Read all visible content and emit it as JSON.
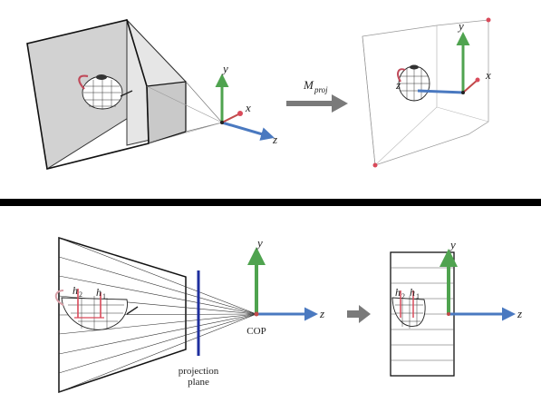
{
  "top_panel": {
    "axis_labels": {
      "y": "y",
      "x": "x",
      "z": "z"
    },
    "transform_label_base": "M",
    "transform_label_sub": "proj",
    "result_axis_labels": {
      "y": "y",
      "x": "x",
      "z": "z"
    }
  },
  "bottom_panel": {
    "axis_labels": {
      "y": "y",
      "z": "z"
    },
    "cop_label": "COP",
    "plane_label_line1": "projection",
    "plane_label_line2": "plane",
    "height_labels": {
      "h1": "h",
      "h1_sub": "2",
      "h2": "h",
      "h2_sub": "1"
    },
    "result_axis_labels": {
      "y": "y",
      "z": "z"
    },
    "result_height_labels": {
      "h1": "h",
      "h1_sub": "2",
      "h2": "h",
      "h2_sub": "1"
    }
  },
  "colors": {
    "y_axis": "#4fa34f",
    "x_axis": "#c04a4a",
    "z_axis": "#4a79c0",
    "plane": "#1f2f9e",
    "divider": "#000000",
    "arrow": "#7a7a7a",
    "highlight": "#d94a5a"
  }
}
